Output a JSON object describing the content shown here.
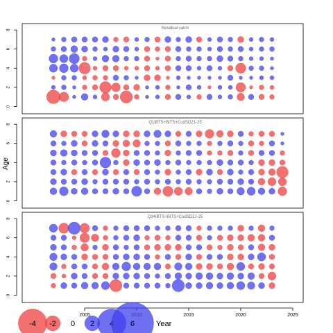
{
  "chart_data": {
    "type": "scatter",
    "ylabel": "Age",
    "xlabel": "Year",
    "xlim": [
      1999,
      2026
    ],
    "ylim": [
      -0.4,
      8.3
    ],
    "x_ticks": [
      2005,
      2010,
      2015,
      2020,
      2025
    ],
    "y_ticks": [
      0,
      2,
      4,
      6,
      8
    ],
    "colors": {
      "positive": "#4040ee",
      "negative": "#ee4040",
      "zero": "#000000"
    },
    "legend": {
      "title": "Year",
      "position": "bottom-left",
      "items": [
        {
          "label": "-4",
          "value": -4
        },
        {
          "label": "-2",
          "value": -2
        },
        {
          "label": "0",
          "value": 0
        },
        {
          "label": "2",
          "value": 2
        },
        {
          "label": "4",
          "value": 4
        },
        {
          "label": "6",
          "value": 6
        }
      ]
    },
    "panels": [
      {
        "title": "Residual catch",
        "years": [
          2002,
          2003,
          2004,
          2005,
          2006,
          2007,
          2008,
          2009,
          2010,
          2011,
          2012,
          2013,
          2014,
          2015,
          2016,
          2017,
          2018,
          2019,
          2020,
          2021,
          2022,
          2023
        ],
        "ages": [
          1,
          2,
          3,
          4,
          5,
          6,
          7
        ],
        "residuals": [
          [
            -1.8,
            -1.2,
            0.3,
            0.8,
            0.4,
            -1.0,
            -0.6,
            -1.6,
            -0.5,
            0.3,
            0.4,
            -0.6,
            0.6,
            0.4,
            -0.5,
            0.6,
            0.4,
            0.5,
            -0.9,
            0.6,
            -0.6,
            -0.5
          ],
          [
            0.4,
            0.5,
            0.3,
            -0.5,
            -0.6,
            -1.5,
            -1.1,
            -0.6,
            -0.7,
            0.3,
            0.4,
            -0.5,
            0.3,
            0.6,
            0.4,
            -0.3,
            0.4,
            0.4,
            -1.2,
            -0.3,
            -0.5,
            -0.4
          ],
          [
            -0.3,
            0.5,
            0.5,
            -0.4,
            -0.5,
            -0.5,
            0.6,
            0.5,
            0.3,
            -0.7,
            -0.7,
            -0.3,
            0.4,
            0.3,
            0.3,
            0.3,
            0.3,
            0.6,
            0.3,
            0.3,
            0.4,
            0.4
          ],
          [
            1.0,
            1.1,
            1.0,
            -1.5,
            -0.4,
            -0.6,
            -0.6,
            -0.4,
            -0.4,
            -0.6,
            -0.4,
            -0.6,
            0.6,
            0.6,
            0.4,
            0.6,
            0.4,
            -0.6,
            -1.3,
            0.5,
            0.5,
            0.3
          ],
          [
            1.1,
            1.0,
            1.3,
            -0.5,
            0.4,
            0.8,
            0.8,
            0.5,
            0.5,
            -0.6,
            -0.3,
            -0.6,
            0.5,
            0.6,
            0.5,
            0.5,
            0.7,
            0.6,
            0.5,
            0.4,
            0.4,
            0.3
          ],
          [
            0.5,
            0.6,
            0.8,
            0.7,
            0.5,
            0.4,
            0.7,
            0.6,
            0.4,
            -0.6,
            -0.5,
            -0.6,
            0.6,
            0.5,
            0.5,
            0.4,
            0.6,
            0.5,
            0.6,
            0.4,
            0.5,
            0.5
          ],
          [
            0.3,
            0.5,
            0.6,
            0.6,
            0.6,
            0.7,
            -0.5,
            -0.6,
            0.4,
            0.5,
            -0.6,
            0.7,
            0.5,
            0.7,
            -0.6,
            0.4,
            0.6,
            0.5,
            -0.7,
            0.4,
            0.5,
            0.4
          ]
        ]
      },
      {
        "title": "Q1IBTS+BITS+CodSD21-25",
        "years": [
          2002,
          2003,
          2004,
          2005,
          2006,
          2007,
          2008,
          2009,
          2010,
          2011,
          2012,
          2013,
          2014,
          2015,
          2016,
          2017,
          2018,
          2019,
          2020,
          2021,
          2022,
          2023,
          2024
        ],
        "ages": [
          1,
          2,
          3,
          4,
          5,
          6,
          7
        ],
        "residuals": [
          [
            0.8,
            1.1,
            0.7,
            0.8,
            0.6,
            0.6,
            0.7,
            0.6,
            1.3,
            0.6,
            -0.8,
            -1.3,
            -1.0,
            -0.9,
            0.6,
            0.5,
            0.7,
            0.6,
            0.9,
            1.0,
            0.8,
            0.7,
            -1.1
          ],
          [
            0.7,
            0.6,
            0.6,
            0.7,
            0.5,
            0.6,
            0.6,
            0.6,
            0.5,
            0.6,
            0.5,
            0.6,
            0.5,
            0.6,
            0.5,
            0.5,
            0.6,
            0.6,
            0.7,
            0.6,
            -0.8,
            -1.0,
            -1.0
          ],
          [
            0.6,
            0.7,
            -0.6,
            0.6,
            -0.6,
            0.7,
            -0.6,
            0.6,
            -0.6,
            0.6,
            0.5,
            -0.7,
            0.5,
            0.6,
            -0.7,
            0.7,
            -0.6,
            0.7,
            0.5,
            0.6,
            -0.7,
            -0.8,
            -1.5
          ],
          [
            0.6,
            0.5,
            0.6,
            0.5,
            0.6,
            1.4,
            0.5,
            -0.7,
            0.7,
            0.6,
            0.7,
            0.5,
            0.6,
            0.5,
            0.5,
            0.5,
            0.7,
            0.6,
            0.6,
            0.5,
            -0.7,
            -0.7,
            -0.6
          ],
          [
            0.7,
            0.8,
            0.7,
            0.6,
            0.6,
            -0.6,
            -1.1,
            -0.7,
            0.6,
            0.6,
            0.5,
            -0.7,
            0.5,
            0.6,
            0.6,
            -0.5,
            -0.5,
            -0.6,
            0.5,
            -0.6,
            0.6,
            0.6,
            -0.5
          ],
          [
            0.6,
            0.5,
            0.7,
            -0.6,
            0.7,
            0.6,
            -0.7,
            -0.8,
            -0.9,
            0.5,
            0.5,
            -0.6,
            0.6,
            0.5,
            0.5,
            -0.5,
            0.5,
            0.6,
            0.5,
            -0.6,
            -0.5,
            0.6,
            0.3
          ],
          [
            0.8,
            -0.7,
            -0.6,
            -0.6,
            0.7,
            0.9,
            0.7,
            -0.7,
            -0.7,
            0.7,
            0.9,
            0.7,
            -0.6,
            0.6,
            -0.7,
            -1.1,
            -0.8,
            -0.7,
            0.6,
            -0.5,
            -0.6,
            -0.6,
            0.3
          ]
        ]
      },
      {
        "title": "Q34IBTS+BITS+CodSD21-25",
        "years": [
          2002,
          2003,
          2004,
          2005,
          2006,
          2007,
          2008,
          2009,
          2010,
          2011,
          2012,
          2013,
          2014,
          2015,
          2016,
          2017,
          2018,
          2019,
          2020,
          2021,
          2022,
          2023
        ],
        "ages": [
          1,
          2,
          3,
          4,
          5,
          6,
          7
        ],
        "residuals": [
          [
            -0.5,
            0.7,
            0.6,
            0.8,
            0.8,
            1.0,
            -1.6,
            0.6,
            0.6,
            0.6,
            0.6,
            0.5,
            1.6,
            0.7,
            0.7,
            0.8,
            0.7,
            0.8,
            1.0,
            0.9,
            0.7,
            -0.7
          ],
          [
            -0.6,
            -0.4,
            0.7,
            0.6,
            -0.6,
            -0.6,
            0.7,
            0.7,
            0.7,
            0.6,
            0.5,
            0.6,
            0.8,
            0.7,
            0.8,
            0.8,
            0.7,
            0.8,
            0.7,
            0.8,
            -0.6,
            -1.0
          ],
          [
            0.9,
            -0.5,
            0.6,
            0.6,
            -0.6,
            -0.8,
            0.8,
            1.1,
            0.8,
            0.8,
            0.8,
            -0.6,
            0.9,
            0.8,
            -0.7,
            -0.7,
            -0.6,
            -0.8,
            1.0,
            -0.6,
            -0.7,
            -0.6
          ],
          [
            0.9,
            0.7,
            0.6,
            -0.7,
            -0.6,
            -0.6,
            0.6,
            0.7,
            0.7,
            0.6,
            -0.5,
            0.6,
            -0.6,
            0.7,
            -0.6,
            0.6,
            0.6,
            -0.7,
            -0.7,
            0.7,
            1.0,
            -0.6
          ],
          [
            0.7,
            0.6,
            -0.5,
            -0.9,
            0.5,
            -0.7,
            0.6,
            0.5,
            0.6,
            -0.6,
            -0.7,
            -0.7,
            -0.7,
            0.6,
            0.6,
            -0.6,
            -0.5,
            -0.7,
            -0.6,
            0.6,
            -0.8,
            -0.7
          ],
          [
            0.6,
            0.6,
            -0.4,
            -1.2,
            -0.9,
            -0.5,
            0.5,
            0.6,
            0.7,
            -0.5,
            -0.6,
            -0.5,
            0.6,
            0.6,
            -0.6,
            0.5,
            -0.6,
            -0.7,
            -0.7,
            -0.8,
            -0.8,
            0.6
          ],
          [
            1.0,
            -1.3,
            1.6,
            -1.2,
            0.6,
            -0.5,
            0.5,
            0.6,
            0.6,
            0.6,
            0.5,
            0.5,
            0.6,
            0.6,
            -0.5,
            0.5,
            0.5,
            0.5,
            -0.7,
            0.5,
            -0.8,
            0.5
          ]
        ]
      }
    ]
  }
}
